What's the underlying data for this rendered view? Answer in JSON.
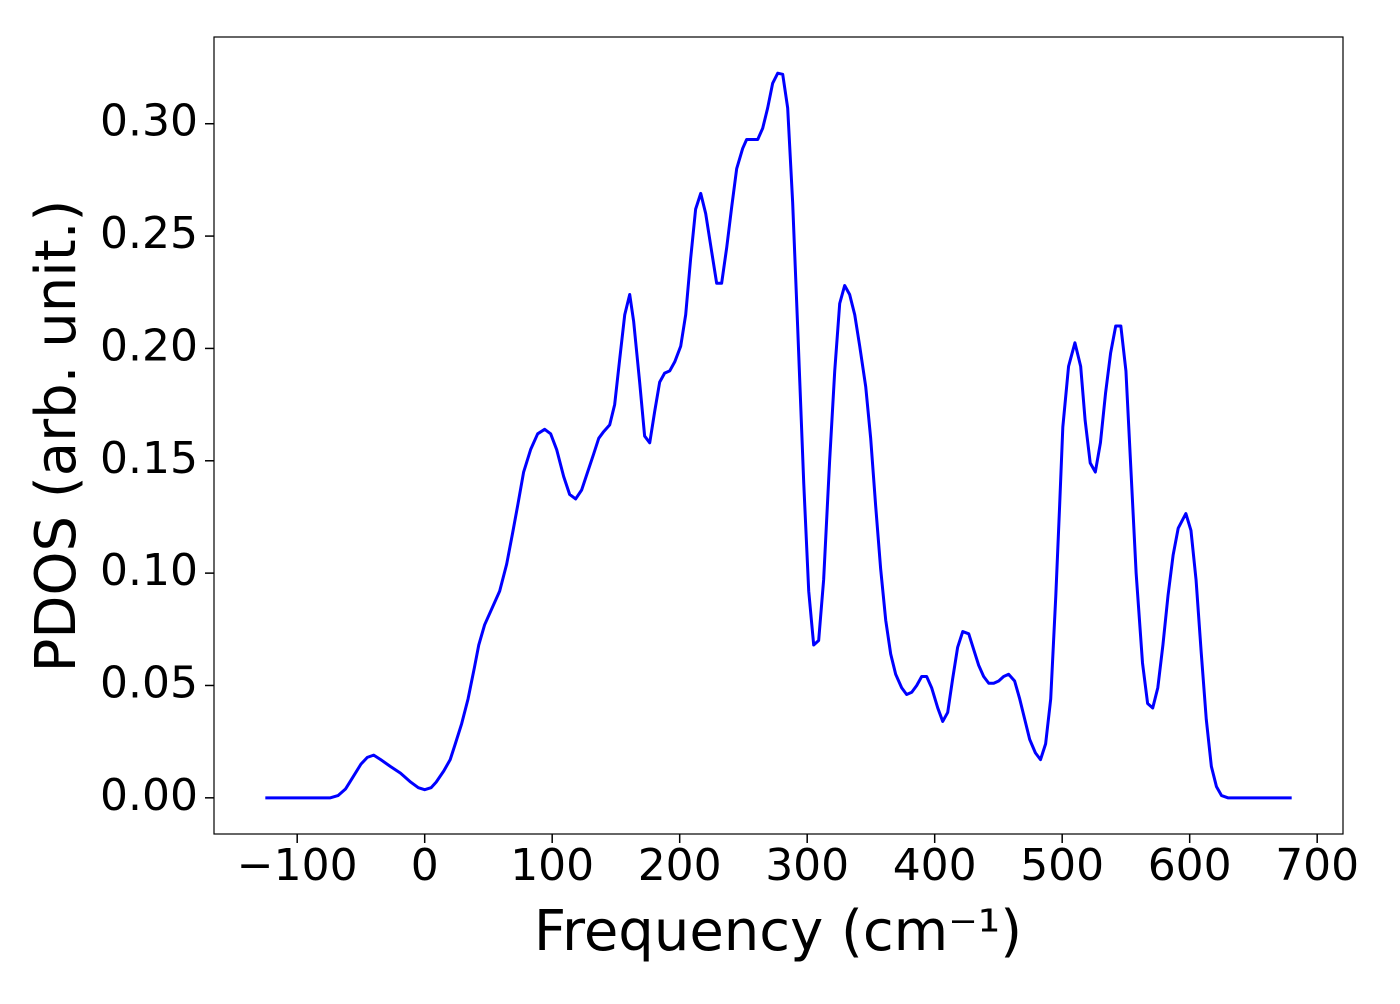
{
  "chart_data": {
    "type": "line",
    "x_label": "Frequency (cm⁻¹)",
    "y_label": "PDOS (arb. unit.)",
    "xlim": [
      -165.25,
      720.25
    ],
    "ylim": [
      -0.0161,
      0.3386
    ],
    "xticks": [
      {
        "value": -100,
        "label": "−100"
      },
      0,
      100,
      200,
      300,
      400,
      500,
      600,
      700
    ],
    "yticks": [
      {
        "value": 0,
        "label": "0.00"
      },
      {
        "value": 0.05,
        "label": "0.05"
      },
      {
        "value": 0.1,
        "label": "0.10"
      },
      {
        "value": 0.15,
        "label": "0.15"
      },
      {
        "value": 0.2,
        "label": "0.20"
      },
      {
        "value": 0.25,
        "label": "0.25"
      },
      {
        "value": 0.3,
        "label": "0.30"
      }
    ],
    "grid": false,
    "color": "#0000ff",
    "x": [
      -125,
      -74,
      -68,
      -62,
      -56.5,
      -50,
      -45,
      -40,
      -34.5,
      -27,
      -19,
      -11,
      -5,
      0,
      5,
      9,
      15,
      20,
      24,
      29,
      34,
      39,
      42.4,
      47,
      52.5,
      58.8,
      64.3,
      69,
      72.9,
      77.6,
      83.1,
      88.6,
      94.1,
      98.8,
      103.5,
      109,
      113.7,
      118.4,
      123.1,
      127.8,
      132.5,
      136.5,
      140.4,
      145.1,
      149,
      152.9,
      156.9,
      160.8,
      163.9,
      168.6,
      172.5,
      176.5,
      180.4,
      184.3,
      188.2,
      192.2,
      196.1,
      200.8,
      204.7,
      208.6,
      212.5,
      216.5,
      220.4,
      225.1,
      229,
      232.9,
      236.9,
      240.8,
      244.7,
      249.4,
      252.5,
      257.3,
      261.2,
      265.1,
      269,
      272.9,
      276.9,
      280.8,
      284.7,
      288.6,
      292.5,
      297.3,
      301.2,
      305.1,
      309,
      312.9,
      317.6,
      321.6,
      325.5,
      329.4,
      333.3,
      337.3,
      341.2,
      345.9,
      349.8,
      353.7,
      357.6,
      361.6,
      365.5,
      369.4,
      374.1,
      378,
      382,
      385.9,
      389.8,
      393.7,
      397.6,
      402.4,
      406.3,
      410.2,
      414.1,
      418,
      422,
      426.7,
      430.6,
      434.5,
      438.4,
      442.4,
      446.3,
      450.2,
      454.1,
      458,
      462.7,
      466.7,
      470.6,
      474.5,
      479,
      483,
      487,
      491,
      495,
      498,
      500.5,
      505,
      510,
      514.5,
      518,
      522,
      526,
      530,
      534,
      538,
      542,
      546,
      550,
      554,
      558,
      563,
      567,
      571,
      575,
      579,
      583,
      587,
      591,
      597,
      601,
      605,
      609,
      613,
      617,
      621,
      625,
      630,
      680
    ],
    "values": [
      0,
      0,
      0.001,
      0.004,
      0.009,
      0.015,
      0.018,
      0.019,
      0.017,
      0.014,
      0.011,
      0.007,
      0.0045,
      0.0036,
      0.0045,
      0.007,
      0.012,
      0.017,
      0.024,
      0.033,
      0.044,
      0.058,
      0.068,
      0.077,
      0.084,
      0.092,
      0.104,
      0.118,
      0.13,
      0.145,
      0.155,
      0.162,
      0.164,
      0.162,
      0.155,
      0.143,
      0.135,
      0.133,
      0.137,
      0.145,
      0.153,
      0.16,
      0.163,
      0.166,
      0.175,
      0.195,
      0.215,
      0.224,
      0.212,
      0.185,
      0.161,
      0.158,
      0.172,
      0.185,
      0.189,
      0.19,
      0.194,
      0.201,
      0.215,
      0.24,
      0.262,
      0.269,
      0.26,
      0.243,
      0.229,
      0.229,
      0.245,
      0.263,
      0.28,
      0.289,
      0.293,
      0.293,
      0.293,
      0.298,
      0.307,
      0.318,
      0.3225,
      0.322,
      0.307,
      0.265,
      0.21,
      0.14,
      0.092,
      0.068,
      0.07,
      0.097,
      0.15,
      0.19,
      0.22,
      0.228,
      0.224,
      0.215,
      0.201,
      0.183,
      0.16,
      0.13,
      0.102,
      0.079,
      0.064,
      0.055,
      0.049,
      0.046,
      0.047,
      0.05,
      0.054,
      0.054,
      0.049,
      0.04,
      0.034,
      0.038,
      0.053,
      0.067,
      0.074,
      0.073,
      0.066,
      0.059,
      0.054,
      0.051,
      0.051,
      0.052,
      0.054,
      0.055,
      0.052,
      0.044,
      0.035,
      0.026,
      0.02,
      0.017,
      0.024,
      0.044,
      0.09,
      0.13,
      0.165,
      0.192,
      0.2025,
      0.192,
      0.168,
      0.149,
      0.145,
      0.158,
      0.18,
      0.198,
      0.21,
      0.21,
      0.19,
      0.145,
      0.1,
      0.06,
      0.042,
      0.04,
      0.049,
      0.068,
      0.09,
      0.108,
      0.12,
      0.1265,
      0.119,
      0.097,
      0.065,
      0.035,
      0.014,
      0.005,
      0.001,
      0,
      0
    ]
  }
}
